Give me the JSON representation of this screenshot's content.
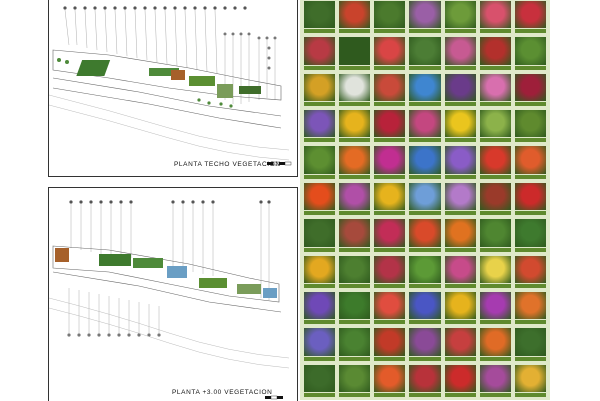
{
  "sheet": {
    "plans": [
      {
        "id": "roof",
        "title": "PLANTA TECHO VEGETACION"
      },
      {
        "id": "level",
        "title": "PLANTA +3.00 VEGETACION"
      }
    ],
    "catalog": {
      "columns": 7,
      "rows": 11,
      "cell_colors": [
        [
          "#3f6d2a",
          "#c9432c",
          "#4b7a2d",
          "#9a5fa6",
          "#6d9b3a",
          "#d8516c",
          "#c8303d"
        ],
        [
          "#b83a44",
          "#2f5a1e",
          "#d94545",
          "#4c7d35",
          "#c75a92",
          "#b3302c",
          "#5b8f32"
        ],
        [
          "#d4a025",
          "#e0e3dc",
          "#c94a3a",
          "#3f86d0",
          "#6a3b8a",
          "#d86fae",
          "#9e1f3a"
        ],
        [
          "#7c55b8",
          "#e6b31d",
          "#b8223a",
          "#c44780",
          "#eac51e",
          "#8cb24a",
          "#5f8a2e"
        ],
        [
          "#5d8f31",
          "#e46b24",
          "#c12e91",
          "#3c74c9",
          "#8a5cc7",
          "#d8392b",
          "#e05c2c"
        ],
        [
          "#e44d1c",
          "#b04fa7",
          "#e6b31d",
          "#6e9ed8",
          "#b37ac9",
          "#9a3a2a",
          "#cc2a2a"
        ],
        [
          "#3f6d2a",
          "#a64a3c",
          "#c22d57",
          "#d94a2a",
          "#e07220",
          "#4f8631",
          "#3e7a2e"
        ],
        [
          "#e3a820",
          "#4d7f30",
          "#b33348",
          "#5c9a36",
          "#c74b8a",
          "#e8d24a",
          "#d24a2f"
        ],
        [
          "#6f49b7",
          "#3d7b2b",
          "#e04d3f",
          "#4a56c4",
          "#e6b31d",
          "#a63bb0",
          "#e0722a"
        ],
        [
          "#6b5fc0",
          "#4a8231",
          "#c23a28",
          "#8a4a97",
          "#c63f3f",
          "#e06b26",
          "#3d6f2c"
        ],
        [
          "#3c6b2a",
          "#5a8a33",
          "#e35b2a",
          "#b8323a",
          "#cc2b2b",
          "#a54b9b",
          "#e3b033"
        ]
      ]
    }
  }
}
